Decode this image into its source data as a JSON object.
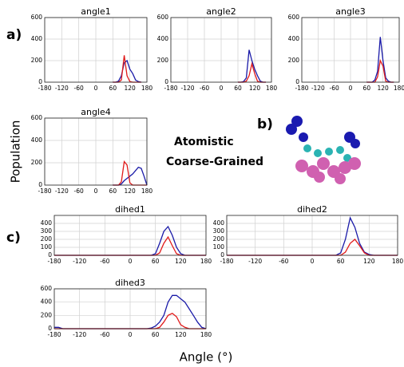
{
  "figure": {
    "panel_labels": [
      "a)",
      "b)",
      "c)"
    ],
    "ylabel": "Population",
    "xlabel": "Angle (°)"
  },
  "chart_data": [
    {
      "type": "line",
      "title": "angle1",
      "xlim": [
        -180,
        180
      ],
      "ylim": [
        0,
        600
      ],
      "yticks": [
        0,
        200,
        400,
        600
      ],
      "xticks": [
        -180,
        -120,
        -60,
        0,
        60,
        120,
        180
      ],
      "grid": true,
      "x": [
        60,
        70,
        80,
        90,
        100,
        110,
        120,
        130,
        140,
        150,
        160
      ],
      "series": [
        {
          "name": "Atomistic",
          "color": "#1a1aa8",
          "values": [
            0,
            0,
            10,
            60,
            180,
            200,
            120,
            80,
            20,
            5,
            0
          ]
        },
        {
          "name": "Coarse-Grained",
          "color": "#e01a1a",
          "values": [
            0,
            0,
            0,
            20,
            250,
            60,
            5,
            0,
            0,
            0,
            0
          ]
        }
      ]
    },
    {
      "type": "line",
      "title": "angle2",
      "xlim": [
        -180,
        180
      ],
      "ylim": [
        0,
        600
      ],
      "yticks": [
        0,
        200,
        400,
        600
      ],
      "xticks": [
        -180,
        -120,
        -60,
        0,
        60,
        120,
        180
      ],
      "grid": true,
      "x": [
        60,
        70,
        80,
        90,
        100,
        110,
        120,
        130,
        140,
        150,
        160
      ],
      "series": [
        {
          "name": "Atomistic",
          "color": "#1a1aa8",
          "values": [
            0,
            0,
            5,
            40,
            300,
            200,
            120,
            60,
            10,
            0,
            0
          ]
        },
        {
          "name": "Coarse-Grained",
          "color": "#e01a1a",
          "values": [
            0,
            0,
            0,
            10,
            60,
            170,
            80,
            10,
            0,
            0,
            0
          ]
        }
      ]
    },
    {
      "type": "line",
      "title": "angle3",
      "xlim": [
        -180,
        180
      ],
      "ylim": [
        0,
        600
      ],
      "yticks": [
        0,
        200,
        400,
        600
      ],
      "xticks": [
        -180,
        -120,
        -60,
        0,
        60,
        120,
        180
      ],
      "grid": true,
      "x": [
        60,
        70,
        80,
        90,
        100,
        110,
        120,
        130,
        140,
        150,
        160
      ],
      "series": [
        {
          "name": "Atomistic",
          "color": "#1a1aa8",
          "values": [
            0,
            0,
            0,
            20,
            100,
            420,
            200,
            40,
            10,
            0,
            0
          ]
        },
        {
          "name": "Coarse-Grained",
          "color": "#e01a1a",
          "values": [
            0,
            0,
            0,
            0,
            50,
            200,
            150,
            10,
            0,
            0,
            0
          ]
        }
      ]
    },
    {
      "type": "line",
      "title": "angle4",
      "xlim": [
        -180,
        180
      ],
      "ylim": [
        0,
        600
      ],
      "yticks": [
        0,
        200,
        400,
        600
      ],
      "xticks": [
        -180,
        -120,
        -60,
        0,
        60,
        120,
        180
      ],
      "grid": true,
      "x": [
        60,
        70,
        80,
        90,
        100,
        110,
        120,
        130,
        140,
        150,
        160,
        170,
        180
      ],
      "series": [
        {
          "name": "Atomistic",
          "color": "#1a1aa8",
          "values": [
            0,
            0,
            0,
            10,
            40,
            60,
            80,
            100,
            130,
            160,
            150,
            80,
            0
          ]
        },
        {
          "name": "Coarse-Grained",
          "color": "#e01a1a",
          "values": [
            0,
            0,
            0,
            30,
            210,
            180,
            20,
            0,
            0,
            0,
            0,
            0,
            0
          ]
        }
      ]
    },
    {
      "type": "line",
      "title": "dihed1",
      "xlim": [
        -180,
        180
      ],
      "ylim": [
        0,
        500
      ],
      "yticks": [
        0,
        100,
        200,
        300,
        400
      ],
      "xticks": [
        -180,
        -120,
        -60,
        0,
        60,
        120,
        180
      ],
      "grid": true,
      "x": [
        -180,
        40,
        50,
        60,
        70,
        80,
        90,
        100,
        110,
        120,
        130,
        140,
        180
      ],
      "series": [
        {
          "name": "Atomistic",
          "color": "#1a1aa8",
          "values": [
            0,
            0,
            0,
            20,
            150,
            300,
            360,
            250,
            100,
            20,
            0,
            0,
            0
          ]
        },
        {
          "name": "Coarse-Grained",
          "color": "#e01a1a",
          "values": [
            0,
            0,
            0,
            0,
            30,
            150,
            230,
            120,
            20,
            0,
            0,
            0,
            0
          ]
        }
      ]
    },
    {
      "type": "line",
      "title": "dihed2",
      "xlim": [
        -180,
        180
      ],
      "ylim": [
        0,
        500
      ],
      "yticks": [
        0,
        100,
        200,
        300,
        400
      ],
      "xticks": [
        -180,
        -120,
        -60,
        0,
        60,
        120,
        180
      ],
      "grid": true,
      "x": [
        -180,
        40,
        50,
        60,
        70,
        80,
        90,
        100,
        110,
        120,
        130,
        140,
        180
      ],
      "series": [
        {
          "name": "Atomistic",
          "color": "#1a1aa8",
          "values": [
            0,
            0,
            0,
            30,
            200,
            470,
            350,
            150,
            40,
            10,
            0,
            0,
            0
          ]
        },
        {
          "name": "Coarse-Grained",
          "color": "#e01a1a",
          "values": [
            0,
            0,
            0,
            0,
            40,
            150,
            200,
            120,
            30,
            0,
            0,
            0,
            0
          ]
        }
      ]
    },
    {
      "type": "line",
      "title": "dihed3",
      "xlim": [
        -180,
        180
      ],
      "ylim": [
        0,
        600
      ],
      "yticks": [
        0,
        200,
        400,
        600
      ],
      "xticks": [
        -180,
        -120,
        -60,
        0,
        60,
        120,
        180
      ],
      "grid": true,
      "x": [
        -180,
        -170,
        -160,
        40,
        50,
        60,
        70,
        80,
        90,
        100,
        110,
        120,
        130,
        140,
        150,
        160,
        170,
        180
      ],
      "series": [
        {
          "name": "Atomistic",
          "color": "#1a1aa8",
          "values": [
            20,
            20,
            0,
            0,
            10,
            40,
            100,
            200,
            400,
            500,
            500,
            450,
            400,
            300,
            200,
            100,
            20,
            0
          ]
        },
        {
          "name": "Coarse-Grained",
          "color": "#e01a1a",
          "values": [
            0,
            0,
            0,
            0,
            0,
            0,
            20,
            100,
            200,
            230,
            180,
            60,
            20,
            0,
            0,
            0,
            0,
            0
          ]
        }
      ]
    }
  ]
}
